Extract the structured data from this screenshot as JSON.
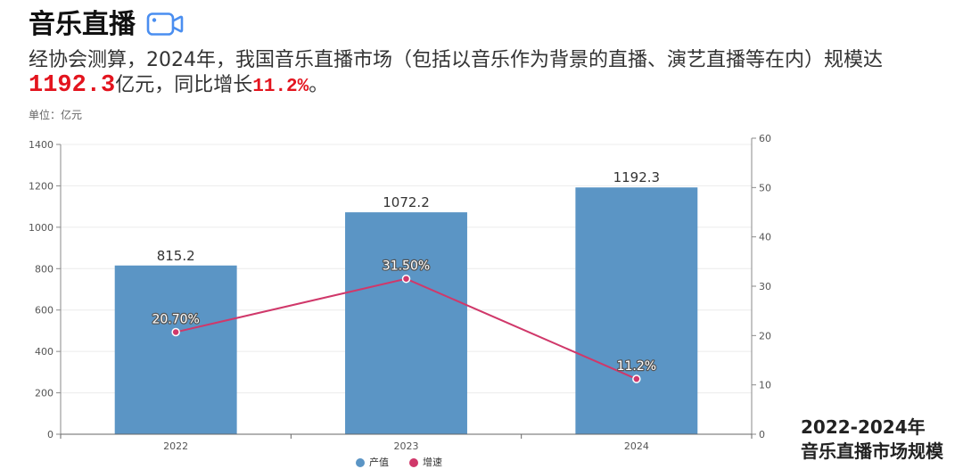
{
  "header": {
    "title": "音乐直播",
    "icon": "video-camera-icon",
    "icon_color": "#4a8ef0"
  },
  "summary": {
    "text_before": "经协会测算，2024年，我国音乐直播市场（包括以音乐作为背景的直播、演艺直播等在内）规模达",
    "market_value": "1192.3",
    "text_middle": "亿元，同比增长",
    "growth_rate": "11.2%",
    "text_end": "。",
    "highlight_color": "#e3141e"
  },
  "unit_label": "单位：亿元",
  "chart_data": {
    "type": "bar",
    "categories": [
      "2022",
      "2023",
      "2024"
    ],
    "series": [
      {
        "name": "产值",
        "type": "bar",
        "axis": "left",
        "values": [
          815.2,
          1072.2,
          1192.3
        ],
        "labels": [
          "815.2",
          "1072.2",
          "1192.3"
        ],
        "color": "#5b95c5"
      },
      {
        "name": "增速",
        "type": "line",
        "axis": "right",
        "values": [
          20.7,
          31.5,
          11.2
        ],
        "labels": [
          "20.70%",
          "31.50%",
          "11.2%"
        ],
        "color": "#d0386a"
      }
    ],
    "y_left": {
      "ylim": [
        0,
        1400
      ],
      "ticks": [
        0,
        200,
        400,
        600,
        800,
        1000,
        1200,
        1400
      ]
    },
    "y_right": {
      "ylim": [
        0,
        60
      ],
      "ticks": [
        0,
        10,
        20,
        30,
        40,
        50,
        60
      ]
    },
    "grid": true,
    "legend": "bottom-center"
  },
  "caption": {
    "line1": "2022-2024年",
    "line2": "音乐直播市场规模"
  }
}
